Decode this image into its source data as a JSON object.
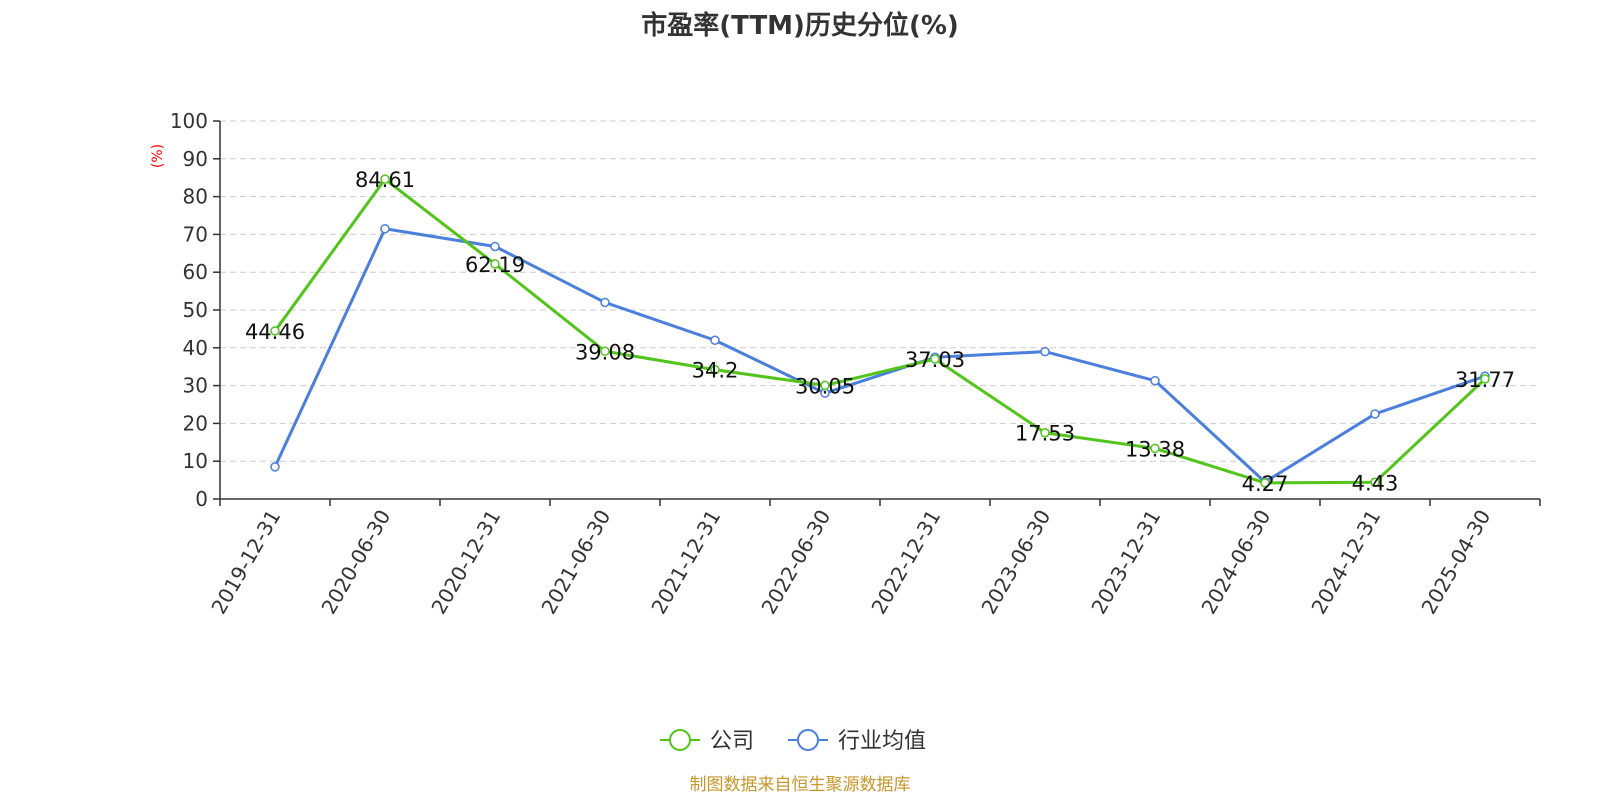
{
  "chart_data": {
    "type": "line",
    "title": "市盈率(TTM)历史分位(%)",
    "ylabel": "(%)",
    "ylim": [
      0,
      100
    ],
    "yticks": [
      0,
      10,
      20,
      30,
      40,
      50,
      60,
      70,
      80,
      90,
      100
    ],
    "grid": true,
    "legend_position": "bottom-center",
    "categories": [
      "2019-12-31",
      "2020-06-30",
      "2020-12-31",
      "2021-06-30",
      "2021-12-31",
      "2022-06-30",
      "2022-12-31",
      "2023-06-30",
      "2023-12-31",
      "2024-06-30",
      "2024-12-31",
      "2025-04-30"
    ],
    "series": [
      {
        "name": "公司",
        "color": "#52c41a",
        "values": [
          44.46,
          84.61,
          62.19,
          39.08,
          34.2,
          30.05,
          37.03,
          17.53,
          13.38,
          4.27,
          4.43,
          31.77
        ],
        "labels": [
          "44.46",
          "84.61",
          "62.19",
          "39.08",
          "34.2",
          "30.05",
          "37.03",
          "17.53",
          "13.38",
          "4.27",
          "4.43",
          "31.77"
        ]
      },
      {
        "name": "行业均值",
        "color": "#4a7fdc",
        "values": [
          8.5,
          71.5,
          66.8,
          52.0,
          42.0,
          28.0,
          37.5,
          39.0,
          31.3,
          4.5,
          22.5,
          32.5
        ]
      }
    ],
    "source": "制图数据来自恒生聚源数据库",
    "source_color": "#c8962a",
    "axis_color": "#333333",
    "grid_color": "#cccccc",
    "ylabel_color": "#ff0000"
  }
}
